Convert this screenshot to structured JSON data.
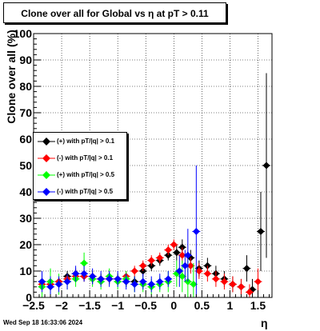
{
  "title": "Clone  over all for Global vs   η at pT > 0.11",
  "timestamp": "Wed Sep 18 16:33:06 2024",
  "chart_data": {
    "type": "scatter",
    "title": "Clone  over all for Global vs   η at pT > 0.11",
    "xlabel": "η",
    "ylabel": "Clone  over all (%)",
    "xlim": [
      -2.5,
      1.75
    ],
    "ylim": [
      0,
      100
    ],
    "grid": true,
    "legend_position": "left-middle",
    "x_ticks": [
      -2.5,
      -2,
      -1.5,
      -1,
      -0.5,
      0,
      0.5,
      1,
      1.5
    ],
    "x_tick_labels": [
      "−2.5",
      "−2",
      "−1.5",
      "−1",
      "−0.5",
      "0",
      "0.5",
      "1",
      "1.5"
    ],
    "y_ticks": [
      0,
      10,
      20,
      30,
      40,
      50,
      60,
      70,
      80,
      90,
      100
    ],
    "y_tick_labels": [
      "0",
      "10",
      "20",
      "30",
      "40",
      "50",
      "60",
      "70",
      "80",
      "90",
      "100"
    ],
    "series": [
      {
        "name": "(+) with pT/|q| > 0.1",
        "color": "#000000",
        "points": [
          {
            "x": -2.35,
            "y": 6,
            "err": 2
          },
          {
            "x": -2.2,
            "y": 5,
            "err": 2
          },
          {
            "x": -2.05,
            "y": 6,
            "err": 2
          },
          {
            "x": -1.9,
            "y": 8,
            "err": 2
          },
          {
            "x": -1.75,
            "y": 9,
            "err": 2
          },
          {
            "x": -1.6,
            "y": 8,
            "err": 2
          },
          {
            "x": -1.45,
            "y": 7,
            "err": 2
          },
          {
            "x": -1.3,
            "y": 7,
            "err": 2
          },
          {
            "x": -1.15,
            "y": 7,
            "err": 2
          },
          {
            "x": -1.0,
            "y": 7,
            "err": 2
          },
          {
            "x": -0.85,
            "y": 6,
            "err": 2
          },
          {
            "x": -0.7,
            "y": 6,
            "err": 2
          },
          {
            "x": -0.55,
            "y": 10,
            "err": 2
          },
          {
            "x": -0.4,
            "y": 12,
            "err": 2
          },
          {
            "x": -0.25,
            "y": 14,
            "err": 2
          },
          {
            "x": -0.1,
            "y": 16,
            "err": 2
          },
          {
            "x": 0.05,
            "y": 17,
            "err": 3
          },
          {
            "x": 0.15,
            "y": 19,
            "err": 3
          },
          {
            "x": 0.3,
            "y": 15,
            "err": 3
          },
          {
            "x": 0.45,
            "y": 11,
            "err": 3
          },
          {
            "x": 0.6,
            "y": 12,
            "err": 3
          },
          {
            "x": 0.75,
            "y": 9,
            "err": 3
          },
          {
            "x": 0.9,
            "y": 7,
            "err": 3
          },
          {
            "x": 1.05,
            "y": 5,
            "err": 3
          },
          {
            "x": 1.2,
            "y": 4,
            "err": 3
          },
          {
            "x": 1.3,
            "y": 11,
            "err": 5
          },
          {
            "x": 1.4,
            "y": 3,
            "err": 4
          },
          {
            "x": 1.55,
            "y": 25,
            "err": 15
          },
          {
            "x": 1.65,
            "y": 50,
            "err": 35
          }
        ]
      },
      {
        "name": "(-) with pT/|q| > 0.1",
        "color": "#ff0000",
        "points": [
          {
            "x": -2.35,
            "y": 5,
            "err": 2
          },
          {
            "x": -2.2,
            "y": 5,
            "err": 2
          },
          {
            "x": -2.05,
            "y": 6,
            "err": 2
          },
          {
            "x": -1.9,
            "y": 7,
            "err": 2
          },
          {
            "x": -1.75,
            "y": 8,
            "err": 2
          },
          {
            "x": -1.6,
            "y": 8,
            "err": 2
          },
          {
            "x": -1.45,
            "y": 8,
            "err": 2
          },
          {
            "x": -1.3,
            "y": 7,
            "err": 2
          },
          {
            "x": -1.15,
            "y": 7,
            "err": 2
          },
          {
            "x": -1.0,
            "y": 7,
            "err": 2
          },
          {
            "x": -0.85,
            "y": 8,
            "err": 2
          },
          {
            "x": -0.7,
            "y": 10,
            "err": 2
          },
          {
            "x": -0.55,
            "y": 12,
            "err": 2
          },
          {
            "x": -0.4,
            "y": 14,
            "err": 2
          },
          {
            "x": -0.25,
            "y": 15,
            "err": 2
          },
          {
            "x": -0.1,
            "y": 18,
            "err": 2
          },
          {
            "x": 0.0,
            "y": 20,
            "err": 2
          },
          {
            "x": 0.15,
            "y": 16,
            "err": 3
          },
          {
            "x": 0.3,
            "y": 12,
            "err": 3
          },
          {
            "x": 0.45,
            "y": 10,
            "err": 3
          },
          {
            "x": 0.6,
            "y": 9,
            "err": 3
          },
          {
            "x": 0.75,
            "y": 7,
            "err": 3
          },
          {
            "x": 0.9,
            "y": 6,
            "err": 3
          },
          {
            "x": 1.05,
            "y": 5,
            "err": 3
          },
          {
            "x": 1.2,
            "y": 4,
            "err": 3
          },
          {
            "x": 1.35,
            "y": 2,
            "err": 3
          },
          {
            "x": 1.5,
            "y": 6,
            "err": 5
          }
        ]
      },
      {
        "name": "(+) with pT/|q| > 0.5",
        "color": "#00ff00",
        "points": [
          {
            "x": -2.35,
            "y": 4,
            "err": 6
          },
          {
            "x": -2.2,
            "y": 6,
            "err": 5
          },
          {
            "x": -2.05,
            "y": 5,
            "err": 4
          },
          {
            "x": -1.9,
            "y": 6,
            "err": 3
          },
          {
            "x": -1.75,
            "y": 7,
            "err": 3
          },
          {
            "x": -1.6,
            "y": 13,
            "err": 4
          },
          {
            "x": -1.45,
            "y": 7,
            "err": 3
          },
          {
            "x": -1.3,
            "y": 6,
            "err": 3
          },
          {
            "x": -1.15,
            "y": 8,
            "err": 3
          },
          {
            "x": -1.0,
            "y": 6,
            "err": 3
          },
          {
            "x": -0.85,
            "y": 7,
            "err": 3
          },
          {
            "x": -0.7,
            "y": 5,
            "err": 3
          },
          {
            "x": -0.55,
            "y": 5,
            "err": 3
          },
          {
            "x": -0.4,
            "y": 4,
            "err": 3
          },
          {
            "x": -0.25,
            "y": 5,
            "err": 3
          },
          {
            "x": -0.1,
            "y": 6,
            "err": 4
          },
          {
            "x": 0.05,
            "y": 9,
            "err": 5
          },
          {
            "x": 0.15,
            "y": 8,
            "err": 6
          },
          {
            "x": 0.25,
            "y": 6,
            "err": 8
          },
          {
            "x": 0.35,
            "y": 5,
            "err": 8
          }
        ]
      },
      {
        "name": "(-) with pT/|q| > 0.5",
        "color": "#0000ff",
        "points": [
          {
            "x": -2.35,
            "y": 6,
            "err": 4
          },
          {
            "x": -2.2,
            "y": 4,
            "err": 4
          },
          {
            "x": -2.05,
            "y": 5,
            "err": 3
          },
          {
            "x": -1.9,
            "y": 6,
            "err": 3
          },
          {
            "x": -1.75,
            "y": 9,
            "err": 3
          },
          {
            "x": -1.6,
            "y": 9,
            "err": 3
          },
          {
            "x": -1.45,
            "y": 8,
            "err": 3
          },
          {
            "x": -1.3,
            "y": 7,
            "err": 3
          },
          {
            "x": -1.15,
            "y": 7,
            "err": 3
          },
          {
            "x": -1.0,
            "y": 7,
            "err": 3
          },
          {
            "x": -0.85,
            "y": 6,
            "err": 3
          },
          {
            "x": -0.7,
            "y": 5,
            "err": 3
          },
          {
            "x": -0.55,
            "y": 6,
            "err": 3
          },
          {
            "x": -0.4,
            "y": 5,
            "err": 3
          },
          {
            "x": -0.25,
            "y": 6,
            "err": 3
          },
          {
            "x": -0.1,
            "y": 7,
            "err": 3
          },
          {
            "x": 0.1,
            "y": 10,
            "err": 6
          },
          {
            "x": 0.2,
            "y": 12,
            "err": 6
          },
          {
            "x": 0.25,
            "y": 16,
            "err": 10
          },
          {
            "x": 0.4,
            "y": 25,
            "err": 25
          }
        ]
      }
    ]
  }
}
